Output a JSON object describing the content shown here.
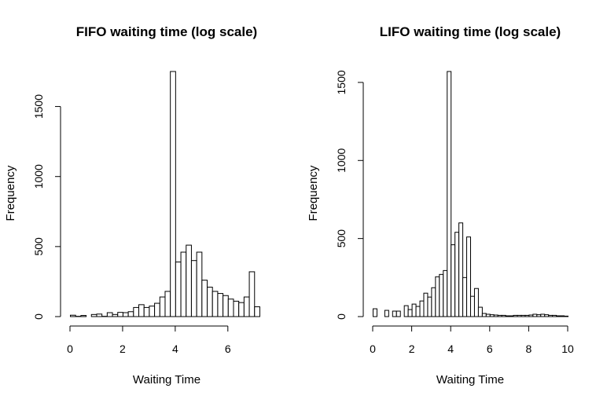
{
  "chart_data": [
    {
      "type": "bar",
      "title": "FIFO waiting time (log scale)",
      "xlabel": "Waiting Time",
      "ylabel": "Frequency",
      "xlim": [
        0,
        7.5
      ],
      "ylim": [
        0,
        1750
      ],
      "xticks": [
        0,
        2,
        4,
        6
      ],
      "yticks": [
        0,
        500,
        1000,
        1500
      ],
      "bin_width": 0.2,
      "bin_start": 0,
      "values": [
        10,
        2,
        8,
        0,
        15,
        18,
        2,
        28,
        15,
        30,
        28,
        35,
        65,
        85,
        65,
        75,
        95,
        140,
        180,
        1750,
        390,
        460,
        510,
        400,
        460,
        260,
        210,
        180,
        165,
        150,
        125,
        110,
        100,
        140,
        320,
        70
      ],
      "grid": false,
      "legend": "none"
    },
    {
      "type": "bar",
      "title": "LIFO waiting time (log scale)",
      "xlabel": "Waiting Time",
      "ylabel": "Frequency",
      "xlim": [
        0,
        10
      ],
      "ylim": [
        0,
        1570
      ],
      "xticks": [
        0,
        2,
        4,
        6,
        8,
        10
      ],
      "yticks": [
        0,
        500,
        1000,
        1500
      ],
      "bin_width": 0.2,
      "bin_start": 0,
      "values": [
        50,
        0,
        0,
        40,
        0,
        35,
        35,
        0,
        70,
        45,
        80,
        65,
        100,
        150,
        125,
        185,
        255,
        270,
        295,
        1570,
        460,
        540,
        600,
        250,
        510,
        130,
        180,
        60,
        20,
        15,
        12,
        10,
        8,
        8,
        5,
        5,
        8,
        8,
        8,
        8,
        10,
        15,
        12,
        15,
        12,
        8,
        8,
        5,
        5,
        3
      ],
      "grid": false,
      "legend": "none"
    }
  ]
}
